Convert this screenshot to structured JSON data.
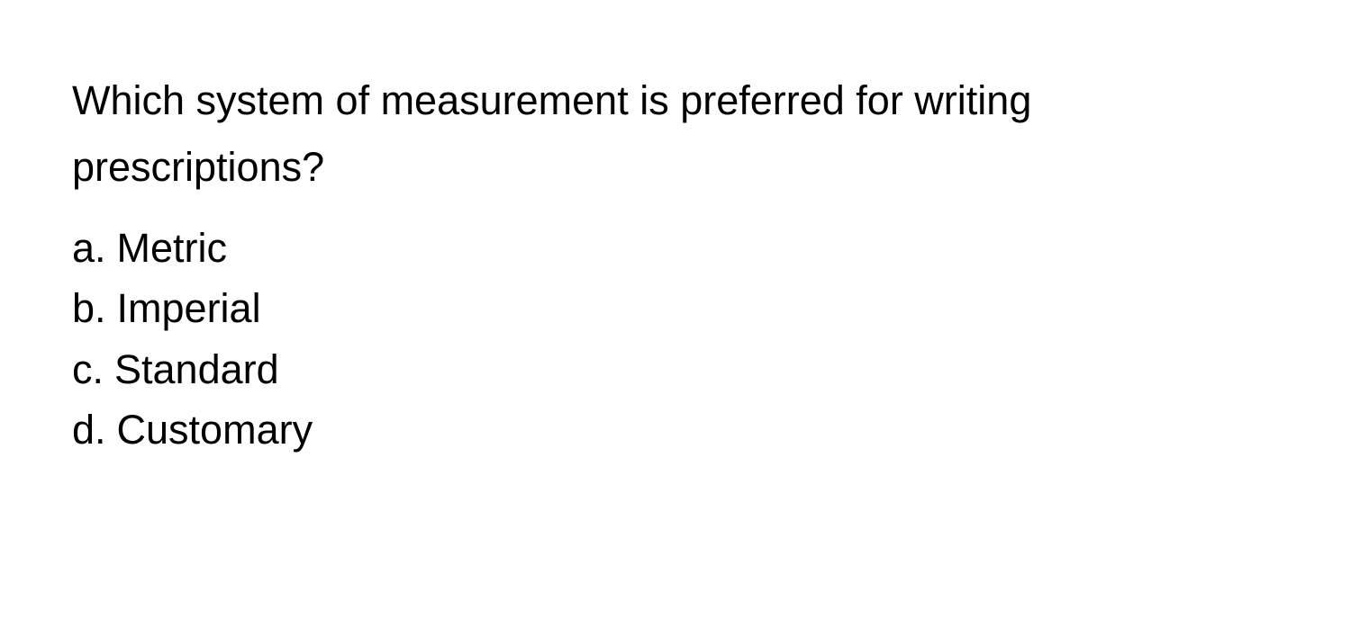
{
  "question": {
    "text": "Which system of measurement is preferred for writing prescriptions?",
    "text_color": "#000000",
    "background_color": "#ffffff",
    "font_size_pt": 34,
    "font_weight": 400,
    "line_height": 1.65
  },
  "options": [
    {
      "letter": "a.",
      "label": "Metric"
    },
    {
      "letter": "b.",
      "label": "Imperial"
    },
    {
      "letter": "c.",
      "label": "Standard"
    },
    {
      "letter": "d.",
      "label": "Customary"
    }
  ],
  "option_style": {
    "font_size_pt": 34,
    "font_weight": 400,
    "line_height": 1.5,
    "text_color": "#000000"
  }
}
